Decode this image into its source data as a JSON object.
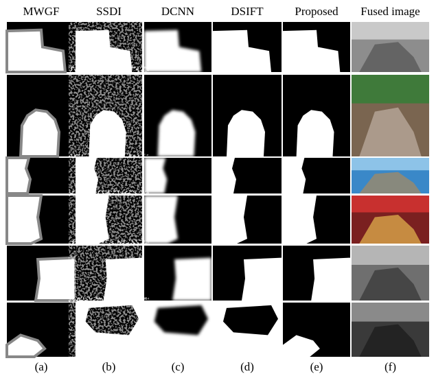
{
  "columns": [
    {
      "header": "MWGF",
      "label": "(a)"
    },
    {
      "header": "SSDI",
      "label": "(b)"
    },
    {
      "header": "DCNN",
      "label": "(c)"
    },
    {
      "header": "DSIFT",
      "label": "(d)"
    },
    {
      "header": "Proposed",
      "label": "(e)"
    },
    {
      "header": "Fused image",
      "label": "(f)"
    }
  ]
}
